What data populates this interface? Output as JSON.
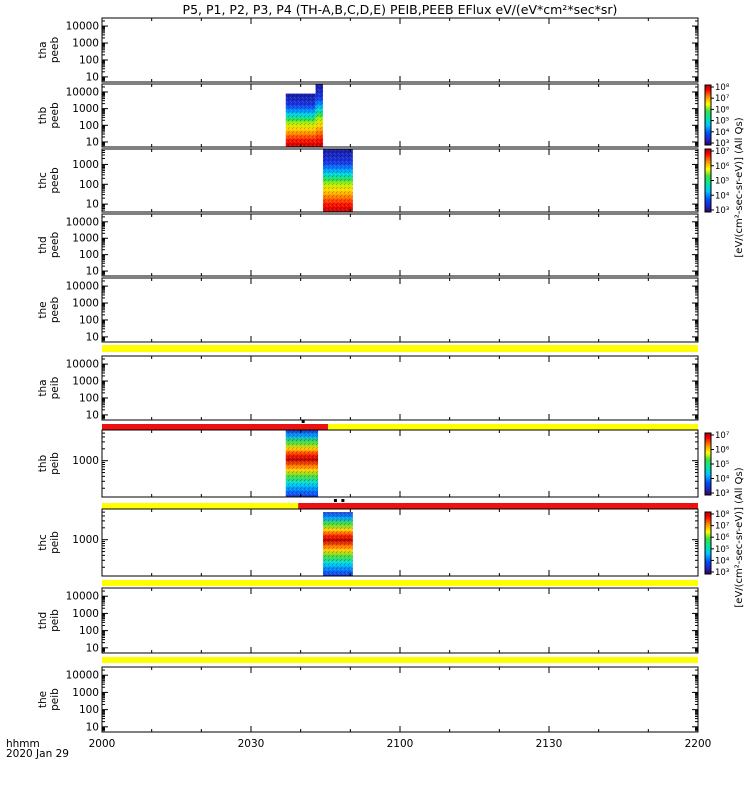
{
  "title": "P5, P1, P2, P3, P4 (TH-A,B,C,D,E) PEIB,PEEB EFlux eV/(eV*cm²*sec*sr)",
  "x_axis_name": "hhmm",
  "x_axis_date": "2020 Jan 29",
  "colorbar_label": "[eV/(cm²-sec-sr-eV)] (All Qs)",
  "colors": {
    "flag_yellow": "#ffff00",
    "flag_red": "#ee1111",
    "flag_black": "#000000"
  },
  "chart_data": {
    "type": "heatmap",
    "x_tick_labels": [
      "2000",
      "2030",
      "2100",
      "2130",
      "2200"
    ],
    "x_ticks_minutes": [
      0,
      30,
      60,
      90,
      120
    ],
    "xlim_minutes": [
      0,
      120
    ],
    "x_unit": "minutes after 20:00 UT",
    "colorbar_scale": "log",
    "panels": [
      {
        "id": "tha-peeb",
        "label": [
          "tha",
          "peeb"
        ],
        "ylim": [
          5,
          30000
        ],
        "yscale": "log",
        "yticks": [
          10,
          100,
          1000,
          10000
        ],
        "ytick_labels": [
          "10",
          "100",
          "1000",
          "10000"
        ],
        "blocks": []
      },
      {
        "id": "thb-peeb",
        "label": [
          "thb",
          "peeb"
        ],
        "ylim": [
          5,
          30000
        ],
        "yscale": "log",
        "yticks": [
          10,
          100,
          1000,
          10000
        ],
        "ytick_labels": [
          "10",
          "100",
          "1000",
          "10000"
        ],
        "blocks": [
          {
            "x": [
              37,
              43
            ],
            "y": [
              5,
              8000
            ],
            "profile": "electron"
          },
          {
            "x": [
              43,
              44.5
            ],
            "y": [
              5,
              30000
            ],
            "profile": "electron"
          }
        ],
        "colorbar": {
          "ticks": [
            1000,
            10000,
            100000,
            1000000,
            10000000,
            100000000
          ],
          "tick_labels": [
            "10³",
            "10⁴",
            "10⁵",
            "10⁶",
            "10⁷",
            "10⁸"
          ]
        }
      },
      {
        "id": "thc-peeb",
        "label": [
          "thc",
          "peeb"
        ],
        "ylim": [
          4,
          6000
        ],
        "yscale": "log",
        "yticks": [
          10,
          100,
          1000
        ],
        "ytick_labels": [
          "10",
          "100",
          "1000"
        ],
        "blocks": [
          {
            "x": [
              44.5,
              50.5
            ],
            "y": [
              4,
              6000
            ],
            "profile": "electron"
          }
        ],
        "colorbar": {
          "ticks": [
            1000,
            10000,
            100000,
            1000000,
            10000000
          ],
          "tick_labels": [
            "10³",
            "10⁴",
            "10⁵",
            "10⁶",
            "10⁷"
          ]
        }
      },
      {
        "id": "thd-peeb",
        "label": [
          "thd",
          "peeb"
        ],
        "ylim": [
          5,
          30000
        ],
        "yscale": "log",
        "yticks": [
          10,
          100,
          1000,
          10000
        ],
        "ytick_labels": [
          "10",
          "100",
          "1000",
          "10000"
        ],
        "blocks": []
      },
      {
        "id": "the-peeb",
        "label": [
          "the",
          "peeb"
        ],
        "ylim": [
          5,
          30000
        ],
        "yscale": "log",
        "yticks": [
          10,
          100,
          1000,
          10000
        ],
        "ytick_labels": [
          "10",
          "100",
          "1000",
          "10000"
        ],
        "blocks": []
      },
      {
        "id": "tha-peib",
        "label": [
          "tha",
          "peib"
        ],
        "ylim": [
          5,
          30000
        ],
        "yscale": "log",
        "yticks": [
          10,
          100,
          1000,
          10000
        ],
        "ytick_labels": [
          "10",
          "100",
          "1000",
          "10000"
        ],
        "blocks": []
      },
      {
        "id": "thb-peib",
        "label": [
          "thb",
          "peib"
        ],
        "ylim": [
          120,
          6000
        ],
        "yscale": "log",
        "yticks": [
          1000
        ],
        "ytick_labels": [
          "1000"
        ],
        "blocks": [
          {
            "x": [
              37,
              43.5
            ],
            "y": [
              120,
              6000
            ],
            "profile": "ion"
          }
        ],
        "colorbar": {
          "ticks": [
            1000,
            10000,
            100000,
            1000000,
            10000000
          ],
          "tick_labels": [
            "10³",
            "10⁴",
            "10⁵",
            "10⁶",
            "10⁷"
          ]
        }
      },
      {
        "id": "thc-peib",
        "label": [
          "thc",
          "peib"
        ],
        "ylim": [
          120,
          6000
        ],
        "yscale": "log",
        "yticks": [
          1000
        ],
        "ytick_labels": [
          "1000"
        ],
        "blocks": [
          {
            "x": [
              44.5,
              50.5
            ],
            "y": [
              120,
              5000
            ],
            "profile": "ion"
          }
        ],
        "colorbar": {
          "ticks": [
            1000,
            10000,
            100000,
            1000000,
            10000000,
            100000000
          ],
          "tick_labels": [
            "10³",
            "10⁴",
            "10⁵",
            "10⁶",
            "10⁷",
            "10⁸"
          ]
        }
      },
      {
        "id": "thd-peib",
        "label": [
          "thd",
          "peib"
        ],
        "ylim": [
          5,
          30000
        ],
        "yscale": "log",
        "yticks": [
          10,
          100,
          1000,
          10000
        ],
        "ytick_labels": [
          "10",
          "100",
          "1000",
          "10000"
        ],
        "blocks": []
      },
      {
        "id": "the-peib",
        "label": [
          "the",
          "peib"
        ],
        "ylim": [
          5,
          30000
        ],
        "yscale": "log",
        "yticks": [
          10,
          100,
          1000,
          10000
        ],
        "ytick_labels": [
          "10",
          "100",
          "1000",
          "10000"
        ],
        "blocks": []
      }
    ],
    "flag_bars": [
      {
        "after_panel": 4,
        "segments": [
          {
            "x": [
              0,
              120
            ],
            "color": "yellow"
          }
        ]
      },
      {
        "after_panel": 5,
        "segments": [
          {
            "x": [
              0,
              45.5
            ],
            "color": "red"
          },
          {
            "x": [
              45.5,
              120
            ],
            "color": "yellow"
          }
        ],
        "marks": [
          {
            "x": 40.5
          }
        ]
      },
      {
        "after_panel": 6,
        "segments": [
          {
            "x": [
              0,
              39.5
            ],
            "color": "yellow"
          },
          {
            "x": [
              39.5,
              120
            ],
            "color": "red"
          }
        ],
        "marks": [
          {
            "x": 47
          },
          {
            "x": 48.5
          }
        ]
      },
      {
        "after_panel": 7,
        "segments": [
          {
            "x": [
              0,
              120
            ],
            "color": "yellow"
          }
        ]
      },
      {
        "after_panel": 8,
        "segments": [
          {
            "x": [
              0,
              120
            ],
            "color": "yellow"
          }
        ]
      }
    ]
  }
}
